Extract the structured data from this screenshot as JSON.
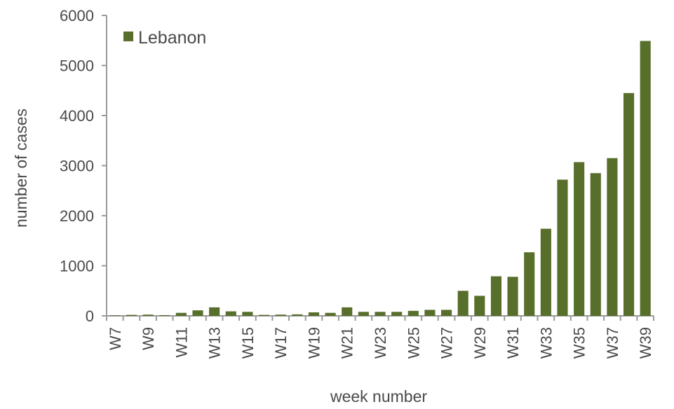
{
  "chart_data": {
    "type": "bar",
    "title": "",
    "xlabel": "week number",
    "ylabel": "number of cases",
    "ylim": [
      0,
      6000
    ],
    "yticks": [
      "0",
      "1000",
      "2000",
      "3000",
      "4000",
      "5000",
      "6000"
    ],
    "grid": false,
    "legend": {
      "placement": "top-left",
      "entries": [
        "Lebanon"
      ]
    },
    "categories": [
      "W7",
      "W8",
      "W9",
      "W10",
      "W11",
      "W12",
      "W13",
      "W14",
      "W15",
      "W16",
      "W17",
      "W18",
      "W19",
      "W20",
      "W21",
      "W22",
      "W23",
      "W24",
      "W25",
      "W26",
      "W27",
      "W28",
      "W29",
      "W30",
      "W31",
      "W32",
      "W33",
      "W34",
      "W35",
      "W36",
      "W37",
      "W38",
      "W39"
    ],
    "x_tick_labels": [
      "W7",
      "",
      "W9",
      "",
      "W11",
      "",
      "W13",
      "",
      "W15",
      "",
      "W17",
      "",
      "W19",
      "",
      "W21",
      "",
      "W23",
      "",
      "W25",
      "",
      "W27",
      "",
      "W29",
      "",
      "W31",
      "",
      "W33",
      "",
      "W35",
      "",
      "W37",
      "",
      "W39"
    ],
    "series": [
      {
        "name": "Lebanon",
        "color": "#586f2b",
        "values": [
          10,
          20,
          25,
          15,
          60,
          110,
          170,
          90,
          80,
          20,
          25,
          30,
          70,
          60,
          170,
          80,
          80,
          80,
          100,
          120,
          120,
          500,
          400,
          790,
          780,
          1270,
          1740,
          2720,
          3070,
          2850,
          3150,
          4450,
          5490
        ]
      }
    ]
  }
}
